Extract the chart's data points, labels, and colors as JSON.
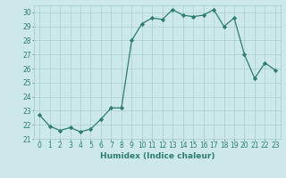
{
  "x": [
    0,
    1,
    2,
    3,
    4,
    5,
    6,
    7,
    8,
    9,
    10,
    11,
    12,
    13,
    14,
    15,
    16,
    17,
    18,
    19,
    20,
    21,
    22,
    23
  ],
  "y": [
    22.7,
    21.9,
    21.6,
    21.8,
    21.5,
    21.7,
    22.4,
    23.2,
    23.2,
    28.0,
    29.2,
    29.6,
    29.5,
    30.2,
    29.8,
    29.7,
    29.8,
    30.2,
    29.0,
    29.6,
    27.0,
    25.3,
    26.4,
    25.9
  ],
  "line_color": "#2e7d6e",
  "marker": "D",
  "marker_size": 2.2,
  "bg_color": "#cce8e8",
  "grid_color": "#aacece",
  "xlabel": "Humidex (Indice chaleur)",
  "xlim": [
    -0.5,
    23.5
  ],
  "ylim": [
    21,
    30.5
  ],
  "yticks": [
    21,
    22,
    23,
    24,
    25,
    26,
    27,
    28,
    29,
    30
  ],
  "xticks": [
    0,
    1,
    2,
    3,
    4,
    5,
    6,
    7,
    8,
    9,
    10,
    11,
    12,
    13,
    14,
    15,
    16,
    17,
    18,
    19,
    20,
    21,
    22,
    23
  ],
  "tick_label_fontsize": 5.5,
  "xlabel_fontsize": 6.5
}
